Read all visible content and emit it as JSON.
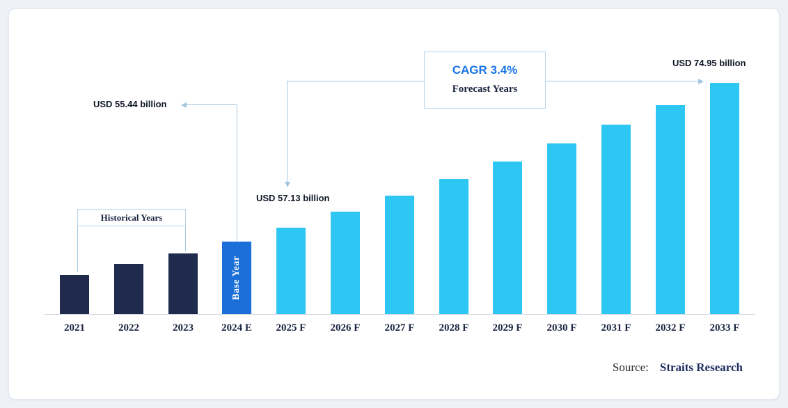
{
  "page": {
    "background_color": "#eef2f7",
    "card_color": "#ffffff"
  },
  "chart_data": {
    "type": "bar",
    "title": "",
    "unit": "USD billion",
    "categories": [
      "2021",
      "2022",
      "2023",
      "2024 E",
      "2025 F",
      "2026 F",
      "2027 F",
      "2028 F",
      "2029 F",
      "2030 F",
      "2031 F",
      "2032 F",
      "2033 F"
    ],
    "values": [
      51.3,
      52.7,
      54.0,
      55.44,
      57.13,
      59.07,
      61.08,
      63.16,
      65.31,
      67.53,
      69.83,
      72.2,
      74.95
    ],
    "labeled_values": {
      "2024 E": "USD 55.44 billion",
      "2025 F": "USD 57.13 billion",
      "2033 F": "USD 74.95 billion"
    },
    "ylim": [
      46.5,
      75.5
    ],
    "grid": false,
    "legend": "none",
    "segments": {
      "historical": {
        "label": "Historical Years",
        "years": [
          "2021",
          "2022",
          "2023"
        ],
        "color": "#1f2a4d"
      },
      "base": {
        "label": "Base Year",
        "years": [
          "2024 E"
        ],
        "color": "#1b6fd8"
      },
      "forecast": {
        "label": "Forecast Years",
        "years": [
          "2025 F",
          "2026 F",
          "2027 F",
          "2028 F",
          "2029 F",
          "2030 F",
          "2031 F",
          "2032 F",
          "2033 F"
        ],
        "color": "#2ec6f2"
      }
    },
    "annotations": {
      "base_year_value": "USD 55.44 billion",
      "first_forecast_value": "USD 57.13 billion",
      "last_forecast_value": "USD 74.95 billion",
      "cagr": "CAGR 3.4%",
      "forecast_label": "Forecast Years",
      "historical_label": "Historical Years",
      "base_year_bar_label": "Base Year"
    }
  },
  "source": {
    "prefix": "Source:",
    "name": "Straits Research"
  }
}
